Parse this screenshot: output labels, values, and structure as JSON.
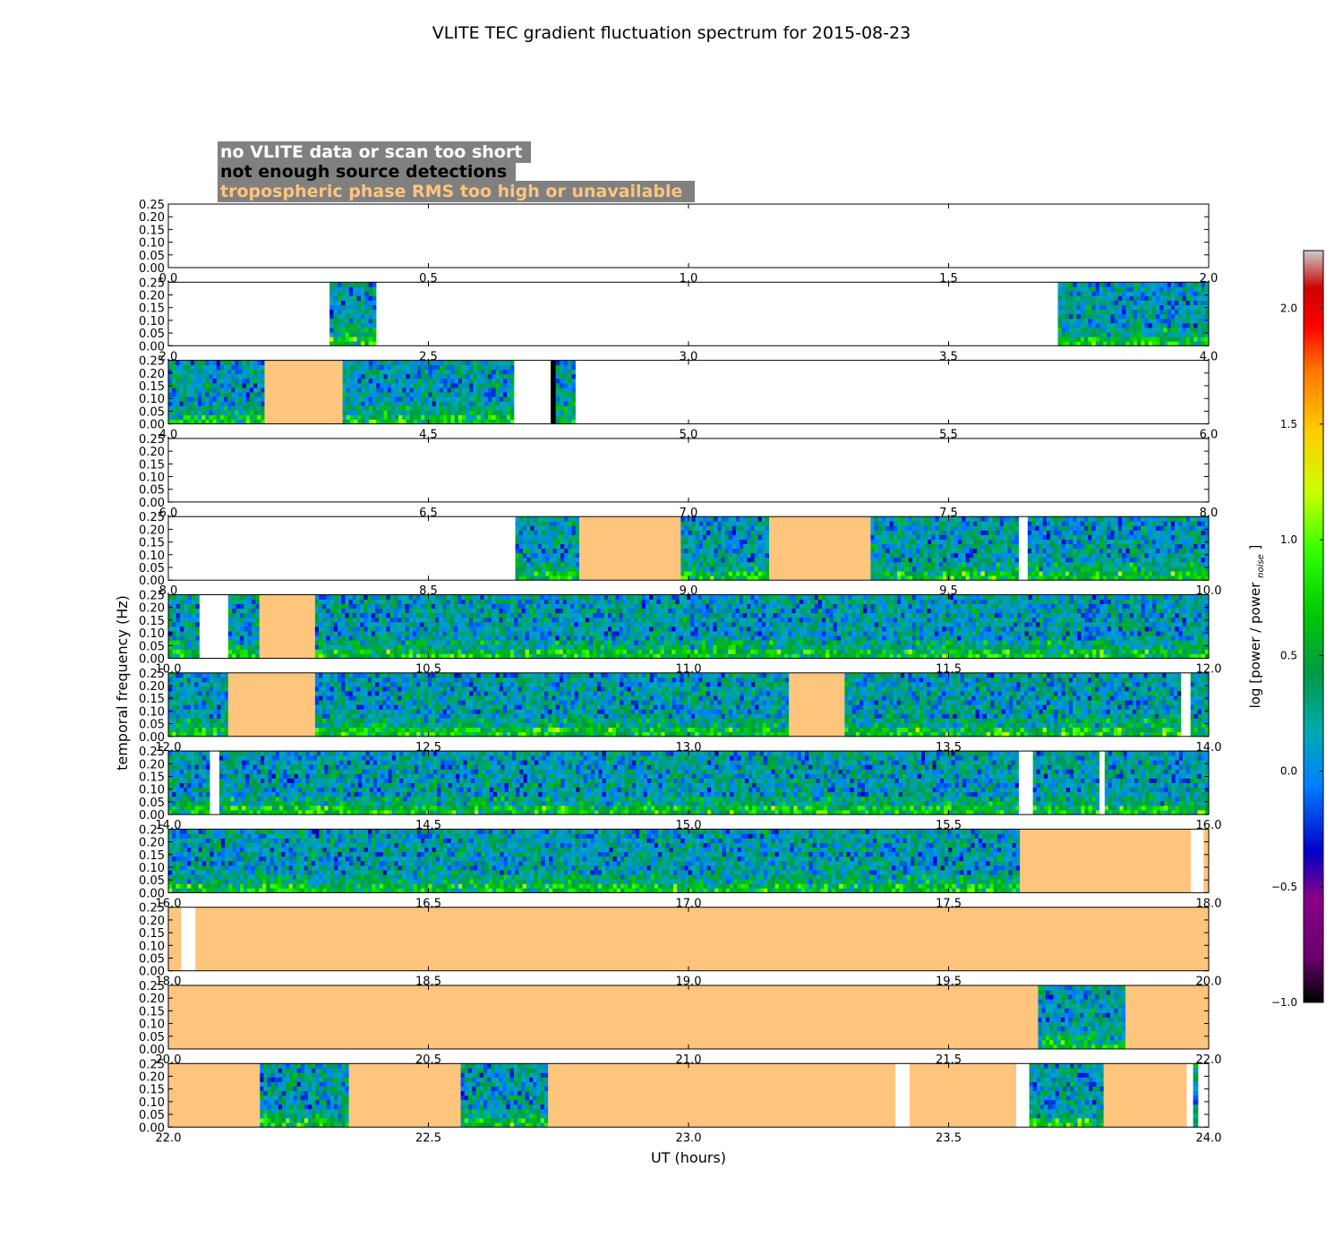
{
  "chart_data": {
    "type": "heatmap",
    "title": "VLITE TEC gradient fluctuation spectrum for 2015-08-23",
    "xlabel": "UT (hours)",
    "ylabel": "temporal frequency (Hz)",
    "ylim": [
      0.0,
      0.25
    ],
    "yticks": [
      "0.00",
      "0.05",
      "0.10",
      "0.15",
      "0.20",
      "0.25"
    ],
    "legend": {
      "placement": "top-left",
      "entries": [
        {
          "label": "no VLITE data or scan too short",
          "text_color": "#ffffff",
          "key": "white"
        },
        {
          "label": "not enough source detections",
          "text_color": "#000000",
          "key": "black"
        },
        {
          "label": "tropospheric phase RMS too high or unavailable",
          "text_color": "#ffc57d",
          "key": "orange"
        }
      ]
    },
    "colorbar": {
      "label": "log [power / power",
      "label_subscript": "noise",
      "label_suffix": "]",
      "min": -1.0,
      "max": 2.25,
      "ticks": [
        "−1.0",
        "−0.5",
        "0.0",
        "0.5",
        "1.0",
        "1.5",
        "2.0"
      ],
      "tick_values": [
        -1.0,
        -0.5,
        0.0,
        0.5,
        1.0,
        1.5,
        2.0
      ]
    },
    "colors": {
      "white": "#ffffff",
      "black": "#000000",
      "orange": "#ffc57d",
      "legend_box": "#808080"
    },
    "panels": [
      {
        "xlim": [
          0.0,
          2.0
        ],
        "xticks": [
          "0.0",
          "0.5",
          "1.0",
          "1.5",
          "2.0"
        ],
        "segments": [
          {
            "kind": "none",
            "start": 0.0,
            "end": 2.0
          }
        ]
      },
      {
        "xlim": [
          2.0,
          4.0
        ],
        "xticks": [
          "2.0",
          "2.5",
          "3.0",
          "3.5",
          "4.0"
        ],
        "segments": [
          {
            "kind": "none",
            "start": 2.0,
            "end": 2.31
          },
          {
            "kind": "data",
            "start": 2.31,
            "end": 2.4
          },
          {
            "kind": "none",
            "start": 2.4,
            "end": 3.71
          },
          {
            "kind": "data",
            "start": 3.71,
            "end": 4.0
          }
        ]
      },
      {
        "xlim": [
          4.0,
          6.0
        ],
        "xticks": [
          "4.0",
          "4.5",
          "5.0",
          "5.5",
          "6.0"
        ],
        "segments": [
          {
            "kind": "data",
            "start": 4.0,
            "end": 4.185
          },
          {
            "kind": "trop",
            "start": 4.185,
            "end": 4.335
          },
          {
            "kind": "data",
            "start": 4.335,
            "end": 4.665
          },
          {
            "kind": "none",
            "start": 4.665,
            "end": 4.735
          },
          {
            "kind": "nodet",
            "start": 4.735,
            "end": 4.745
          },
          {
            "kind": "data",
            "start": 4.745,
            "end": 4.783
          },
          {
            "kind": "none",
            "start": 4.783,
            "end": 6.0
          }
        ]
      },
      {
        "xlim": [
          6.0,
          8.0
        ],
        "xticks": [
          "6.0",
          "6.5",
          "7.0",
          "7.5",
          "8.0"
        ],
        "segments": [
          {
            "kind": "none",
            "start": 6.0,
            "end": 8.0
          }
        ]
      },
      {
        "xlim": [
          8.0,
          10.0
        ],
        "xticks": [
          "8.0",
          "8.5",
          "9.0",
          "9.5",
          "10.0"
        ],
        "segments": [
          {
            "kind": "none",
            "start": 8.0,
            "end": 8.667
          },
          {
            "kind": "data",
            "start": 8.667,
            "end": 8.79
          },
          {
            "kind": "trop",
            "start": 8.79,
            "end": 8.985
          },
          {
            "kind": "data",
            "start": 8.985,
            "end": 9.155
          },
          {
            "kind": "trop",
            "start": 9.155,
            "end": 9.35
          },
          {
            "kind": "data",
            "start": 9.35,
            "end": 9.635
          },
          {
            "kind": "none",
            "start": 9.635,
            "end": 9.652
          },
          {
            "kind": "data",
            "start": 9.652,
            "end": 10.0
          }
        ]
      },
      {
        "xlim": [
          10.0,
          12.0
        ],
        "xticks": [
          "10.0",
          "10.5",
          "11.0",
          "11.5",
          "12.0"
        ],
        "segments": [
          {
            "kind": "data",
            "start": 10.0,
            "end": 10.06
          },
          {
            "kind": "none",
            "start": 10.06,
            "end": 10.115
          },
          {
            "kind": "data",
            "start": 10.115,
            "end": 10.175
          },
          {
            "kind": "trop",
            "start": 10.175,
            "end": 10.282
          },
          {
            "kind": "data",
            "start": 10.282,
            "end": 12.0
          }
        ]
      },
      {
        "xlim": [
          12.0,
          14.0
        ],
        "xticks": [
          "12.0",
          "12.5",
          "13.0",
          "13.5",
          "14.0"
        ],
        "segments": [
          {
            "kind": "data",
            "start": 12.0,
            "end": 12.115
          },
          {
            "kind": "trop",
            "start": 12.115,
            "end": 12.282
          },
          {
            "kind": "data",
            "start": 12.282,
            "end": 13.193
          },
          {
            "kind": "trop",
            "start": 13.193,
            "end": 13.3
          },
          {
            "kind": "data",
            "start": 13.3,
            "end": 13.947
          },
          {
            "kind": "none",
            "start": 13.947,
            "end": 13.965
          },
          {
            "kind": "data",
            "start": 13.965,
            "end": 14.0
          }
        ]
      },
      {
        "xlim": [
          14.0,
          16.0
        ],
        "xticks": [
          "14.0",
          "14.5",
          "15.0",
          "15.5",
          "16.0"
        ],
        "segments": [
          {
            "kind": "data",
            "start": 14.0,
            "end": 14.08
          },
          {
            "kind": "none",
            "start": 14.08,
            "end": 14.098
          },
          {
            "kind": "data",
            "start": 14.098,
            "end": 15.635
          },
          {
            "kind": "none",
            "start": 15.635,
            "end": 15.662
          },
          {
            "kind": "data",
            "start": 15.662,
            "end": 15.79
          },
          {
            "kind": "none",
            "start": 15.79,
            "end": 15.8
          },
          {
            "kind": "data",
            "start": 15.8,
            "end": 16.0
          }
        ]
      },
      {
        "xlim": [
          16.0,
          18.0
        ],
        "xticks": [
          "16.0",
          "16.5",
          "17.0",
          "17.5",
          "18.0"
        ],
        "segments": [
          {
            "kind": "data",
            "start": 16.0,
            "end": 17.637
          },
          {
            "kind": "trop",
            "start": 17.637,
            "end": 17.966
          },
          {
            "kind": "none",
            "start": 17.966,
            "end": 17.99
          },
          {
            "kind": "trop",
            "start": 17.99,
            "end": 18.0
          }
        ]
      },
      {
        "xlim": [
          18.0,
          20.0
        ],
        "xticks": [
          "18.0",
          "18.5",
          "19.0",
          "19.5",
          "20.0"
        ],
        "segments": [
          {
            "kind": "trop",
            "start": 18.0,
            "end": 18.025
          },
          {
            "kind": "none",
            "start": 18.025,
            "end": 18.052
          },
          {
            "kind": "trop",
            "start": 18.052,
            "end": 20.0
          }
        ]
      },
      {
        "xlim": [
          20.0,
          22.0
        ],
        "xticks": [
          "20.0",
          "20.5",
          "21.0",
          "21.5",
          "22.0"
        ],
        "segments": [
          {
            "kind": "trop",
            "start": 20.0,
            "end": 21.672
          },
          {
            "kind": "data",
            "start": 21.672,
            "end": 21.84
          },
          {
            "kind": "trop",
            "start": 21.84,
            "end": 22.0
          }
        ]
      },
      {
        "xlim": [
          22.0,
          24.0
        ],
        "xticks": [
          "22.0",
          "22.5",
          "23.0",
          "23.5",
          "24.0"
        ],
        "segments": [
          {
            "kind": "trop",
            "start": 22.0,
            "end": 22.176
          },
          {
            "kind": "data",
            "start": 22.176,
            "end": 22.347
          },
          {
            "kind": "trop",
            "start": 22.347,
            "end": 22.562
          },
          {
            "kind": "data",
            "start": 22.562,
            "end": 22.73
          },
          {
            "kind": "trop",
            "start": 22.73,
            "end": 23.398
          },
          {
            "kind": "none",
            "start": 23.398,
            "end": 23.425
          },
          {
            "kind": "trop",
            "start": 23.425,
            "end": 23.63
          },
          {
            "kind": "none",
            "start": 23.63,
            "end": 23.655
          },
          {
            "kind": "data",
            "start": 23.655,
            "end": 23.798
          },
          {
            "kind": "trop",
            "start": 23.798,
            "end": 23.958
          },
          {
            "kind": "none",
            "start": 23.958,
            "end": 23.97
          },
          {
            "kind": "data",
            "start": 23.97,
            "end": 23.98
          },
          {
            "kind": "none",
            "start": 23.98,
            "end": 24.0
          }
        ]
      }
    ]
  }
}
